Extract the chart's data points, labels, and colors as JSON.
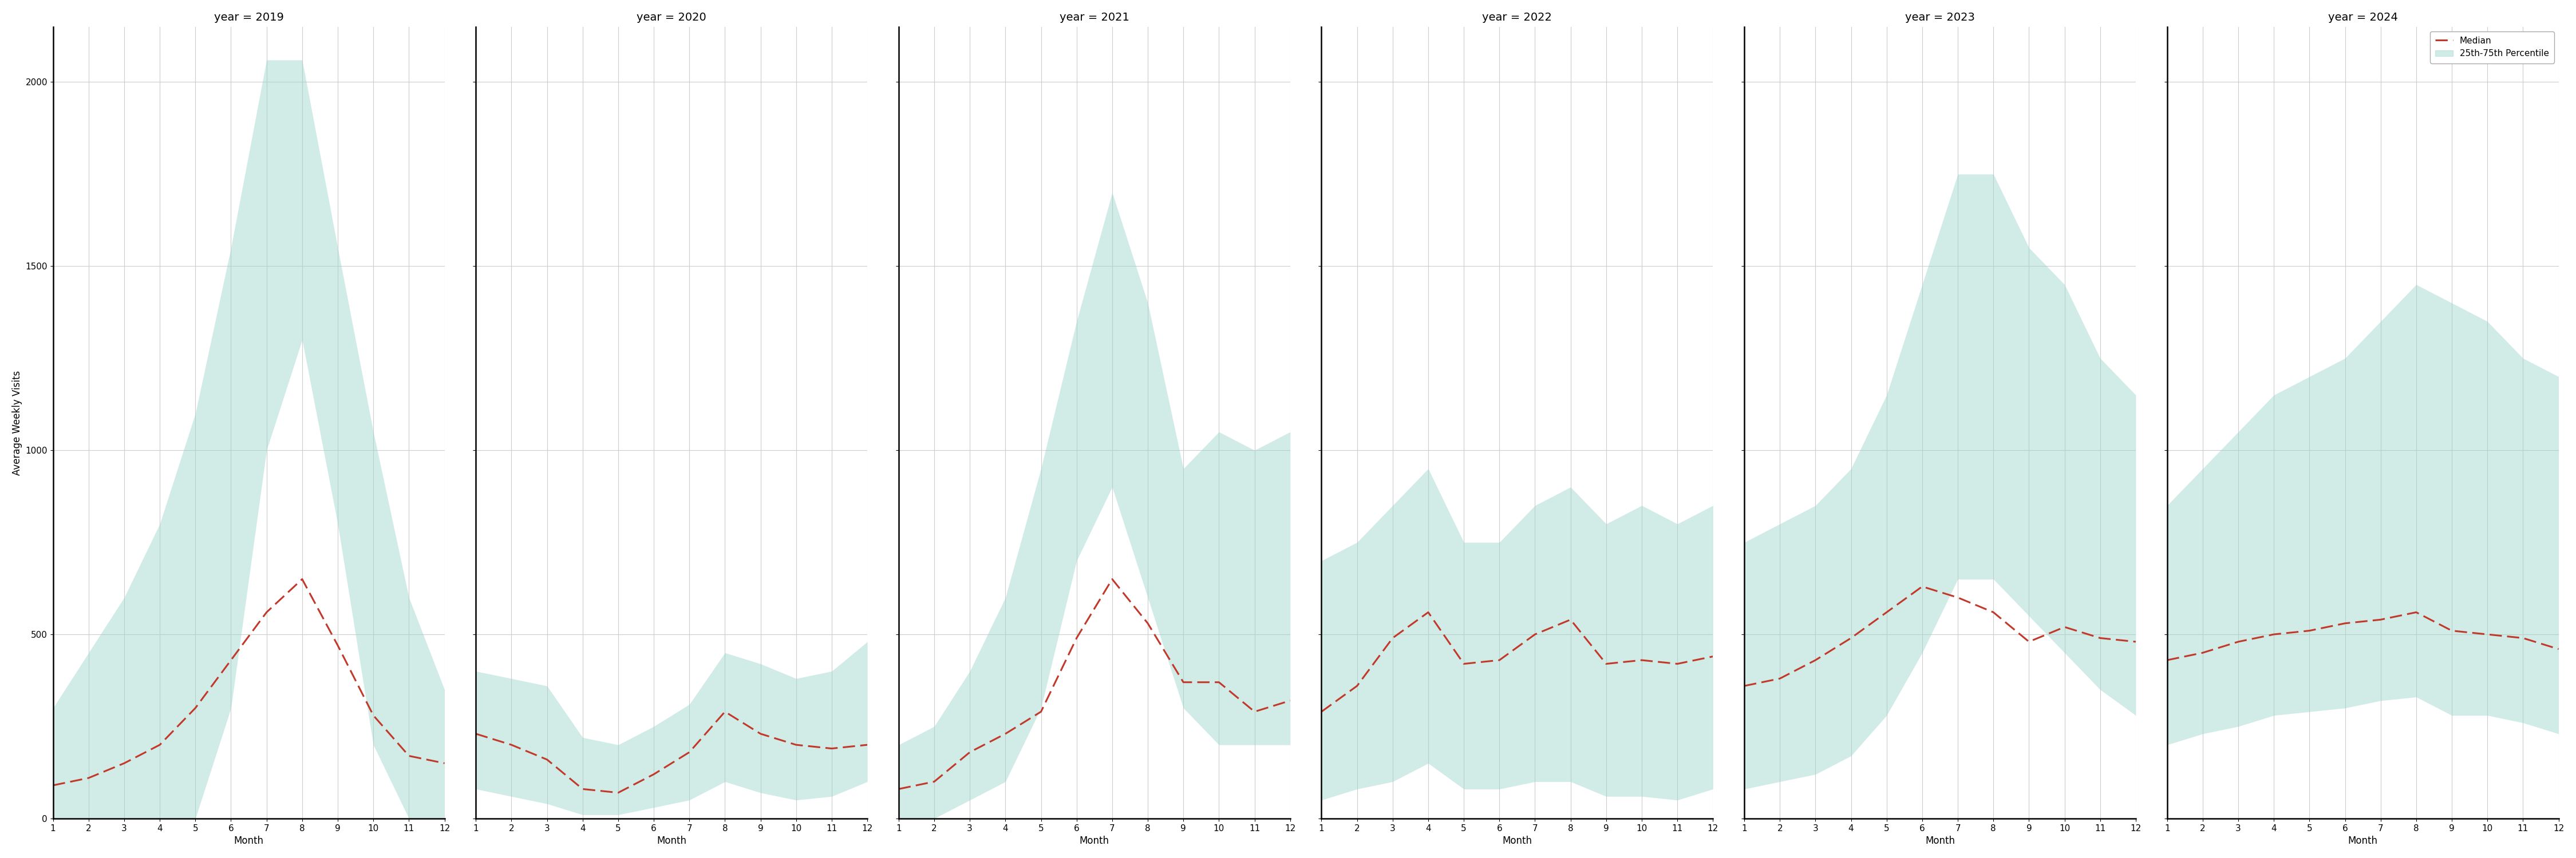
{
  "years": [
    2019,
    2020,
    2021,
    2022,
    2023,
    2024
  ],
  "months": [
    1,
    2,
    3,
    4,
    5,
    6,
    7,
    8,
    9,
    10,
    11,
    12
  ],
  "median": {
    "2019": [
      90,
      110,
      150,
      200,
      300,
      430,
      560,
      650,
      470,
      280,
      170,
      150
    ],
    "2020": [
      230,
      200,
      160,
      80,
      70,
      120,
      180,
      290,
      230,
      200,
      190,
      200
    ],
    "2021": [
      80,
      100,
      180,
      230,
      290,
      490,
      650,
      530,
      370,
      370,
      290,
      320
    ],
    "2022": [
      290,
      360,
      490,
      560,
      420,
      430,
      500,
      540,
      420,
      430,
      420,
      440
    ],
    "2023": [
      360,
      380,
      430,
      490,
      560,
      630,
      600,
      560,
      480,
      520,
      490,
      480
    ],
    "2024": [
      430,
      450,
      480,
      500,
      510,
      530,
      540,
      560,
      510,
      500,
      490,
      460
    ]
  },
  "p25": {
    "2019": [
      0,
      0,
      0,
      0,
      0,
      300,
      1000,
      1300,
      800,
      200,
      0,
      0
    ],
    "2020": [
      80,
      60,
      40,
      10,
      10,
      30,
      50,
      100,
      70,
      50,
      60,
      100
    ],
    "2021": [
      0,
      0,
      50,
      100,
      300,
      700,
      900,
      600,
      300,
      200,
      200,
      200
    ],
    "2022": [
      50,
      80,
      100,
      150,
      80,
      80,
      100,
      100,
      60,
      60,
      50,
      80
    ],
    "2023": [
      80,
      100,
      120,
      170,
      280,
      450,
      650,
      650,
      550,
      450,
      350,
      280
    ],
    "2024": [
      200,
      230,
      250,
      280,
      290,
      300,
      320,
      330,
      280,
      280,
      260,
      230
    ]
  },
  "p75": {
    "2019": [
      300,
      450,
      600,
      800,
      1100,
      1550,
      2060,
      2060,
      1550,
      1050,
      600,
      350
    ],
    "2020": [
      400,
      380,
      360,
      220,
      200,
      250,
      310,
      450,
      420,
      380,
      400,
      480
    ],
    "2021": [
      200,
      250,
      400,
      600,
      950,
      1350,
      1700,
      1400,
      950,
      1050,
      1000,
      1050
    ],
    "2022": [
      700,
      750,
      850,
      950,
      750,
      750,
      850,
      900,
      800,
      850,
      800,
      850
    ],
    "2023": [
      750,
      800,
      850,
      950,
      1150,
      1450,
      1750,
      1750,
      1550,
      1450,
      1250,
      1150
    ],
    "2024": [
      850,
      950,
      1050,
      1150,
      1200,
      1250,
      1350,
      1450,
      1400,
      1350,
      1250,
      1200
    ]
  },
  "fill_color": "#99d4cb",
  "fill_alpha": 0.45,
  "line_color": "#c0392b",
  "line_width": 2.2,
  "ylabel": "Average Weekly Visits",
  "xlabel": "Month",
  "ylim": [
    0,
    2150
  ],
  "yticks": [
    0,
    500,
    1000,
    1500,
    2000
  ],
  "xticks": [
    1,
    2,
    3,
    4,
    5,
    6,
    7,
    8,
    9,
    10,
    11,
    12
  ],
  "legend_median": "Median",
  "legend_fill": "25th-75th Percentile",
  "background_color": "#ffffff",
  "grid_color": "#cccccc",
  "title_fontsize": 14,
  "label_fontsize": 12,
  "tick_fontsize": 11
}
